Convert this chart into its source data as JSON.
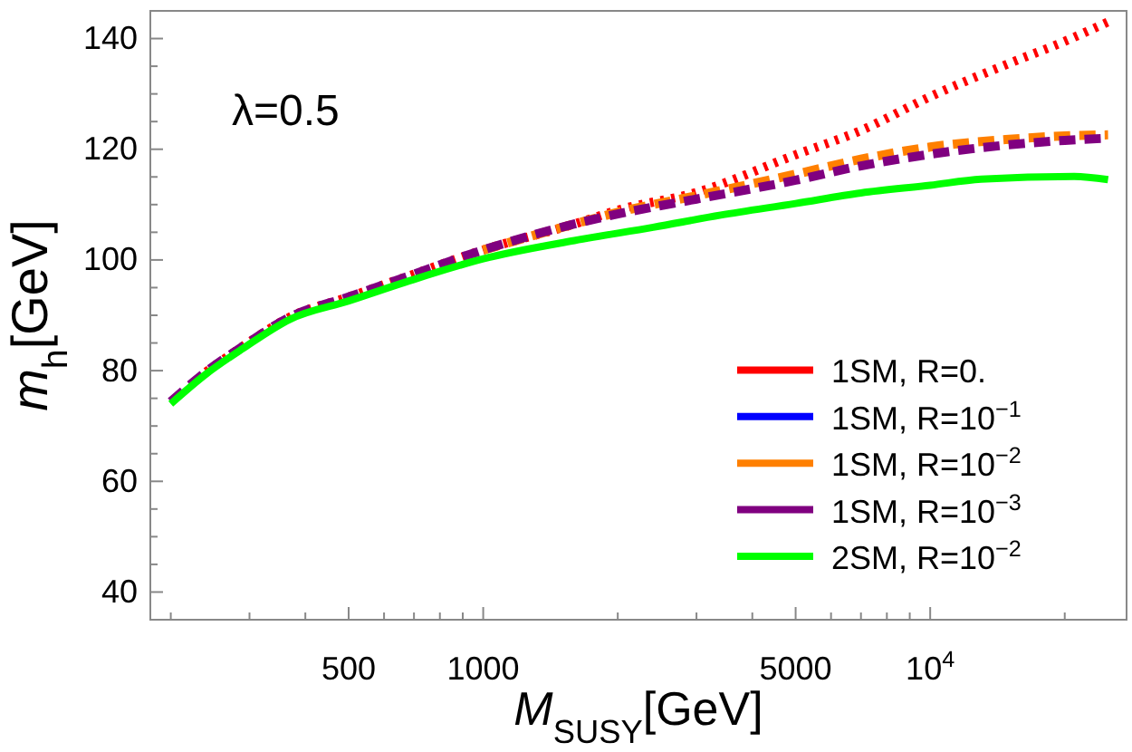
{
  "chart_data": {
    "type": "line",
    "xlabel": "M$_{SUSY}$[GeV]",
    "ylabel": "m$_{h}$[GeV]",
    "annotations": [
      "λ=0.5"
    ],
    "log": "x",
    "legend": "bottom right",
    "grid": false,
    "xlim": [
      180,
      27500
    ],
    "ylim": [
      35,
      145
    ],
    "xticks": [
      {
        "value": 200,
        "label": null
      },
      {
        "value": 300,
        "label": null
      },
      {
        "value": 400,
        "label": null
      },
      500,
      {
        "value": 600,
        "label": null
      },
      {
        "value": 700,
        "label": null
      },
      {
        "value": 800,
        "label": null
      },
      {
        "value": 900,
        "label": null
      },
      1000,
      {
        "value": 2000,
        "label": null
      },
      {
        "value": 3000,
        "label": null
      },
      {
        "value": 4000,
        "label": null
      },
      5000,
      {
        "value": 6000,
        "label": null
      },
      {
        "value": 7000,
        "label": null
      },
      {
        "value": 8000,
        "label": null
      },
      {
        "value": 9000,
        "label": null
      },
      {
        "value": 10000,
        "label": "10$^{4}$"
      },
      {
        "value": 20000,
        "label": null
      }
    ],
    "yticks": [
      40,
      {
        "value": 45,
        "label": null
      },
      {
        "value": 50,
        "label": null
      },
      {
        "value": 55,
        "label": null
      },
      60,
      {
        "value": 65,
        "label": null
      },
      {
        "value": 70,
        "label": null
      },
      {
        "value": 75,
        "label": null
      },
      80,
      {
        "value": 85,
        "label": null
      },
      {
        "value": 90,
        "label": null
      },
      {
        "value": 95,
        "label": null
      },
      100,
      {
        "value": 105,
        "label": null
      },
      {
        "value": 110,
        "label": null
      },
      {
        "value": 115,
        "label": null
      },
      120,
      {
        "value": 125,
        "label": null
      },
      {
        "value": 130,
        "label": null
      },
      {
        "value": 135,
        "label": null
      },
      140
    ],
    "x": [
      200,
      240,
      290,
      370,
      500,
      670,
      1000,
      1600,
      2000,
      3000,
      5000,
      7000,
      10000,
      15000,
      20000,
      25000
    ],
    "series": [
      {
        "name": "1SM, R=0.",
        "color": "#ff0000",
        "line_style": "dotted",
        "values": [
          null,
          79.8,
          84.4,
          89.7,
          93.3,
          96.9,
          101.8,
          106.5,
          109.0,
          112.2,
          119.0,
          123.4,
          129.5,
          135.5,
          139.5,
          143.0
        ]
      },
      {
        "name": "1SM, R=10$^{−1}$",
        "color": "#0000ff",
        "line_style": "dashed",
        "values": [
          null,
          null,
          null,
          null,
          null,
          null,
          null,
          null,
          null,
          null,
          null,
          null,
          null,
          null,
          null,
          null
        ]
      },
      {
        "name": "1SM, R=10$^{−2}$",
        "color": "#ff8000",
        "line_style": "dashed",
        "values": [
          null,
          null,
          null,
          null,
          null,
          null,
          101.8,
          106.5,
          108.6,
          111.6,
          115.5,
          118.2,
          120.4,
          121.8,
          122.4,
          122.6
        ]
      },
      {
        "name": "1SM, R=10$^{−3}$",
        "color": "#800080",
        "line_style": "dashed",
        "values": [
          74.4,
          79.8,
          84.4,
          89.7,
          93.3,
          96.9,
          101.8,
          106.5,
          108.3,
          111.0,
          114.4,
          117.0,
          119.1,
          120.8,
          121.6,
          122.0
        ]
      },
      {
        "name": "2SM, R=10$^{−2}$",
        "color": "#00ff00",
        "line_style": "solid",
        "x": [
          200,
          240,
          290,
          370,
          500,
          670,
          1000,
          1600,
          2400,
          3400,
          5000,
          7000,
          10000,
          13000,
          21000,
          25000
        ],
        "values": [
          74.0,
          79.4,
          84.0,
          89.3,
          92.6,
          96.0,
          100.2,
          103.5,
          105.9,
          108.1,
          110.2,
          112.1,
          113.5,
          114.6,
          115.1,
          114.5
        ]
      }
    ]
  }
}
